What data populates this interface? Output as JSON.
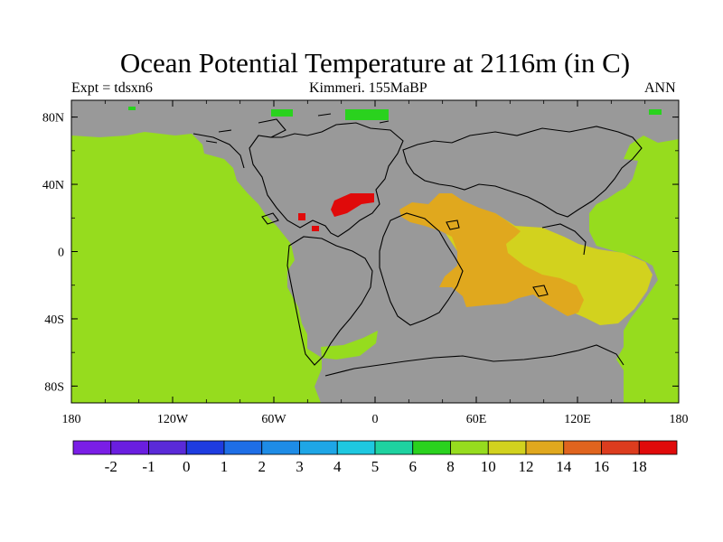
{
  "title": "Ocean Potential Temperature at 2116m (in C)",
  "subtitle_left": "Expt = tdsxn6",
  "subtitle_center": "Kimmeri. 155MaBP",
  "subtitle_right": "ANN",
  "map": {
    "projection": "cylindrical-equidistant",
    "lon_range": [
      -180,
      180
    ],
    "lat_range": [
      -90,
      90
    ],
    "land_color": "#999999",
    "coastline_color": "#000000",
    "x_tick_labels": [
      "180",
      "120W",
      "60W",
      "0",
      "60E",
      "120E",
      "180"
    ],
    "y_tick_labels": [
      "80N",
      "40N",
      "0",
      "40S",
      "80S"
    ]
  },
  "colorbar": {
    "colors": [
      "#7a1ee6",
      "#6a1ee0",
      "#5a2ad8",
      "#1e3ce0",
      "#1e6ee6",
      "#1e8ce6",
      "#1ea6e6",
      "#1ec8e0",
      "#1ed2a0",
      "#2ad21e",
      "#96dc1e",
      "#d2d21e",
      "#e0a81e",
      "#e0641e",
      "#dc3c1e",
      "#e00a0a"
    ],
    "labels": [
      "-2",
      "-1",
      "0",
      "1",
      "2",
      "3",
      "4",
      "5",
      "6",
      "8",
      "10",
      "12",
      "14",
      "16",
      "18"
    ]
  },
  "field_colors": {
    "ocean_background": "#96dc1e",
    "band_12": "#d2d21e",
    "band_14": "#e0a81e",
    "band_18": "#e00a0a",
    "band_6": "#2ad21e"
  }
}
